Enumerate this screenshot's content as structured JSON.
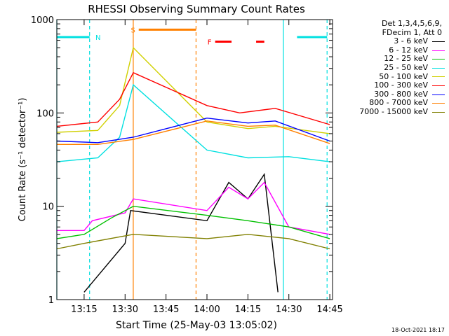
{
  "chart_data": {
    "type": "line",
    "title": "RHESSI Observing Summary Count Rates",
    "xlabel": "Start Time (25-May-03 13:05:02)",
    "ylabel": "Count Rate (s⁻¹ detector⁻¹)",
    "y_scale": "log",
    "ylim": [
      1,
      1000
    ],
    "xlim": [
      "13:05",
      "14:46"
    ],
    "x_ticks": [
      "13:15",
      "13:30",
      "13:45",
      "14:00",
      "14:15",
      "14:30",
      "14:45"
    ],
    "y_ticks": [
      "1",
      "10",
      "100",
      "1000"
    ],
    "legend_header": [
      "Det 1,3,4,5,6,9,",
      "FDecim 1, Att 0"
    ],
    "series": [
      {
        "name": "3 - 6 keV",
        "color": "#000000",
        "points": [
          [
            "13:15",
            1.2
          ],
          [
            "13:30",
            4
          ],
          [
            "13:32",
            9
          ],
          [
            "14:00",
            7
          ],
          [
            "14:08",
            18
          ],
          [
            "14:15",
            12
          ],
          [
            "14:21",
            22
          ],
          [
            "14:26",
            1.2
          ]
        ]
      },
      {
        "name": "6 - 12 keV",
        "color": "#ff00ff",
        "points": [
          [
            "13:05",
            5.5
          ],
          [
            "13:15",
            5.5
          ],
          [
            "13:18",
            7
          ],
          [
            "13:30",
            8.5
          ],
          [
            "13:33",
            12
          ],
          [
            "14:00",
            9
          ],
          [
            "14:08",
            16
          ],
          [
            "14:15",
            12
          ],
          [
            "14:21",
            18
          ],
          [
            "14:30",
            6
          ],
          [
            "14:45",
            5
          ]
        ]
      },
      {
        "name": "12 - 25 keV",
        "color": "#00c000",
        "points": [
          [
            "13:05",
            4.5
          ],
          [
            "13:15",
            5
          ],
          [
            "13:25",
            7.5
          ],
          [
            "13:33",
            10
          ],
          [
            "14:00",
            8
          ],
          [
            "14:15",
            7
          ],
          [
            "14:30",
            6
          ],
          [
            "14:45",
            4.5
          ]
        ]
      },
      {
        "name": "25 - 50 keV",
        "color": "#00e0e0",
        "points": [
          [
            "13:05",
            30
          ],
          [
            "13:20",
            33
          ],
          [
            "13:28",
            55
          ],
          [
            "13:33",
            200
          ],
          [
            "14:00",
            40
          ],
          [
            "14:15",
            33
          ],
          [
            "14:30",
            34
          ],
          [
            "14:45",
            30
          ]
        ]
      },
      {
        "name": "50 - 100 keV",
        "color": "#d0d000",
        "points": [
          [
            "13:05",
            62
          ],
          [
            "13:20",
            65
          ],
          [
            "13:28",
            120
          ],
          [
            "13:33",
            500
          ],
          [
            "14:00",
            80
          ],
          [
            "14:15",
            68
          ],
          [
            "14:25",
            72
          ],
          [
            "14:45",
            60
          ]
        ]
      },
      {
        "name": "100 - 300 keV",
        "color": "#ff0000",
        "points": [
          [
            "13:05",
            72
          ],
          [
            "13:20",
            80
          ],
          [
            "13:28",
            140
          ],
          [
            "13:33",
            270
          ],
          [
            "14:00",
            120
          ],
          [
            "14:12",
            100
          ],
          [
            "14:25",
            112
          ],
          [
            "14:45",
            75
          ]
        ]
      },
      {
        "name": "300 - 800 keV",
        "color": "#0000ff",
        "points": [
          [
            "13:05",
            50
          ],
          [
            "13:20",
            48
          ],
          [
            "13:33",
            55
          ],
          [
            "14:00",
            88
          ],
          [
            "14:15",
            78
          ],
          [
            "14:25",
            82
          ],
          [
            "14:45",
            50
          ]
        ]
      },
      {
        "name": "800 - 7000 keV",
        "color": "#ff8000",
        "points": [
          [
            "13:05",
            46
          ],
          [
            "13:20",
            46
          ],
          [
            "13:33",
            52
          ],
          [
            "14:00",
            82
          ],
          [
            "14:15",
            72
          ],
          [
            "14:25",
            74
          ],
          [
            "14:45",
            47
          ]
        ]
      },
      {
        "name": "7000 - 15000 keV",
        "color": "#808000",
        "points": [
          [
            "13:05",
            3.5
          ],
          [
            "13:15",
            4
          ],
          [
            "13:33",
            5
          ],
          [
            "14:00",
            4.5
          ],
          [
            "14:15",
            5
          ],
          [
            "14:30",
            4.5
          ],
          [
            "14:45",
            3.5
          ]
        ]
      }
    ],
    "annotations": [
      {
        "label": "N",
        "color": "#00e0e0",
        "spans": [
          [
            "13:05",
            "13:17"
          ],
          [
            "14:33",
            "14:44"
          ]
        ],
        "level": 650
      },
      {
        "label": "S",
        "color": "#ff8000",
        "spans": [
          [
            "13:35",
            "13:56"
          ]
        ],
        "level": 780
      },
      {
        "label": "F",
        "color": "#ff0000",
        "spans": [
          [
            "14:03",
            "14:09"
          ],
          [
            "14:18",
            "14:21"
          ]
        ],
        "level": 580
      }
    ],
    "markers": [
      {
        "time": "13:05",
        "color": "#00e0e0",
        "style": "solid"
      },
      {
        "time": "13:17",
        "color": "#00e0e0",
        "style": "dashed"
      },
      {
        "time": "13:33",
        "color": "#ff8000",
        "style": "solid"
      },
      {
        "time": "13:56",
        "color": "#ff8000",
        "style": "dashed"
      },
      {
        "time": "14:28",
        "color": "#00e0e0",
        "style": "solid"
      },
      {
        "time": "14:44",
        "color": "#00e0e0",
        "style": "dashed"
      }
    ]
  },
  "footer_date": "18-Oct-2021 18:17"
}
